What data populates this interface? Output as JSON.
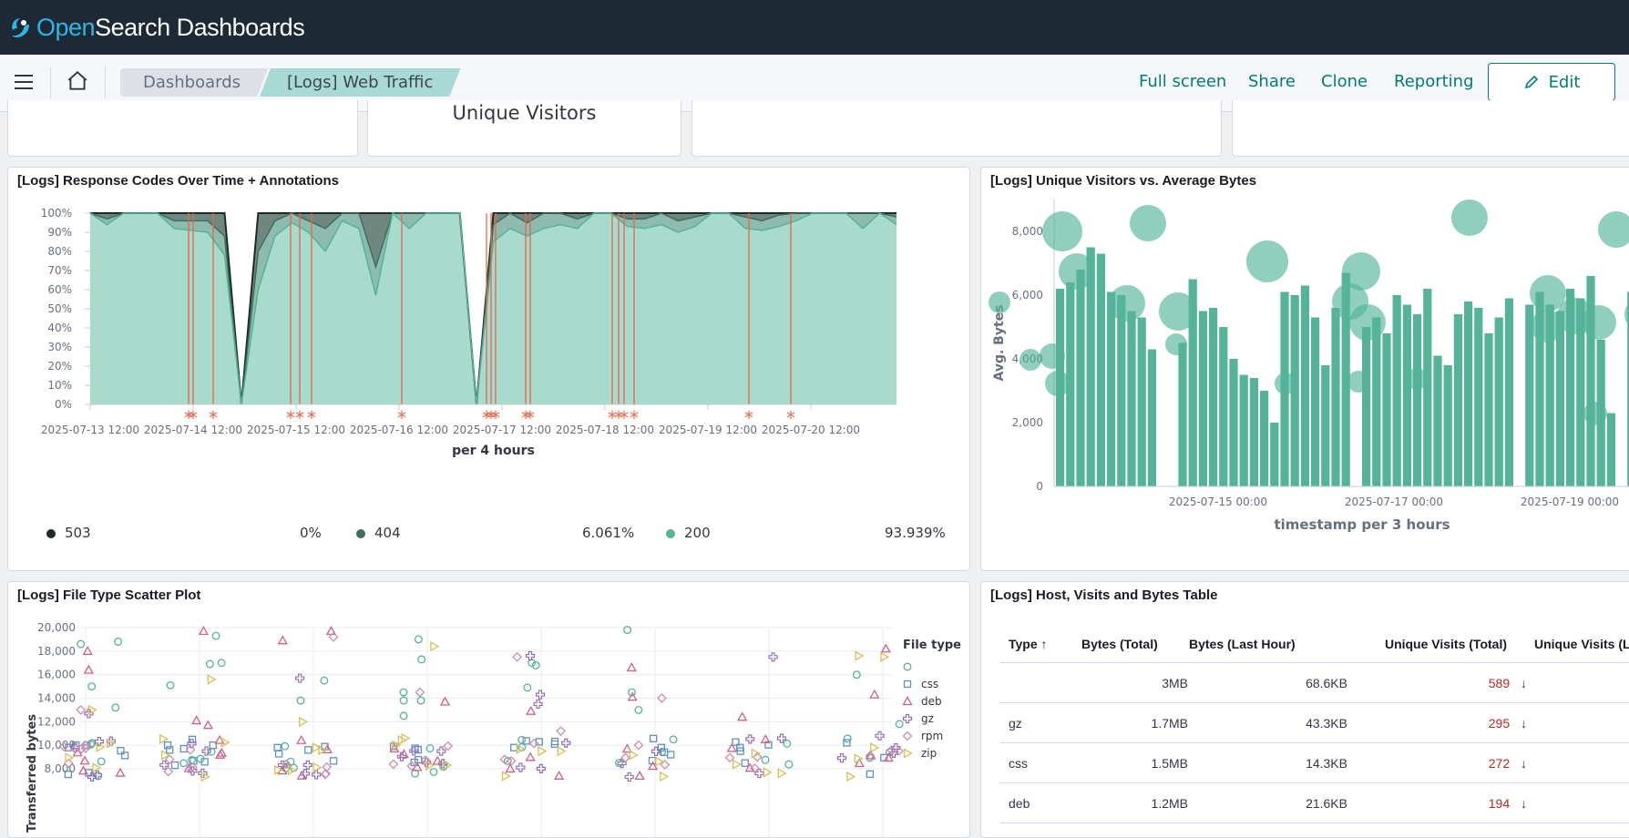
{
  "app": {
    "brand_open": "Open",
    "brand_rest": "Search Dashboards"
  },
  "nav": {
    "breadcrumbs": [
      "Dashboards",
      "[Logs] Web Traffic"
    ],
    "links": [
      "Full screen",
      "Share",
      "Clone",
      "Reporting"
    ],
    "edit_label": "Edit"
  },
  "top_panels": {
    "unique_visitors_label": "Unique Visitors"
  },
  "response_codes": {
    "title": "[Logs] Response Codes Over Time + Annotations",
    "xlabel": "per 4 hours",
    "legend": [
      {
        "name": "503",
        "value": "0%",
        "color": "#1e2b27"
      },
      {
        "name": "404",
        "value": "6.061%",
        "color": "#3f6d5f"
      },
      {
        "name": "200",
        "value": "93.939%",
        "color": "#54b399"
      }
    ]
  },
  "visitors_bytes": {
    "title": "[Logs] Unique Visitors vs. Average Bytes",
    "ylabel": "Avg. Bytes",
    "xlabel": "timestamp per 3 hours"
  },
  "scatter": {
    "title": "[Logs] File Type Scatter Plot",
    "ylabel": "Transferred bytes",
    "legend_title": "File type",
    "legend": [
      {
        "name": "",
        "shape": "circle",
        "color": "#54b399"
      },
      {
        "name": "css",
        "shape": "square",
        "color": "#6092c0"
      },
      {
        "name": "deb",
        "shape": "triangle",
        "color": "#d36086"
      },
      {
        "name": "gz",
        "shape": "cross",
        "color": "#9170b8"
      },
      {
        "name": "rpm",
        "shape": "diamond",
        "color": "#ca8eae"
      },
      {
        "name": "zip",
        "shape": "triangle-right",
        "color": "#d6bf57"
      }
    ]
  },
  "table": {
    "title": "[Logs] Host, Visits and Bytes Table",
    "headers": [
      "Type",
      "Bytes (Total)",
      "Bytes (Last Hour)",
      "Unique Visits (Total)",
      "Unique Visits (Last"
    ],
    "rows": [
      {
        "type": "",
        "bytes_total": "3MB",
        "bytes_last_hour": "68.6KB",
        "visits_total": "589"
      },
      {
        "type": "gz",
        "bytes_total": "1.7MB",
        "bytes_last_hour": "43.3KB",
        "visits_total": "295"
      },
      {
        "type": "css",
        "bytes_total": "1.5MB",
        "bytes_last_hour": "14.3KB",
        "visits_total": "272"
      },
      {
        "type": "deb",
        "bytes_total": "1.2MB",
        "bytes_last_hour": "21.6KB",
        "visits_total": "194"
      }
    ]
  },
  "chart_data": [
    {
      "type": "area",
      "title": "[Logs] Response Codes Over Time + Annotations",
      "xlabel": "per 4 hours",
      "ylabel": "",
      "x_ticks": [
        "2025-07-13 12:00",
        "2025-07-14 12:00",
        "2025-07-15 12:00",
        "2025-07-16 12:00",
        "2025-07-17 12:00",
        "2025-07-18 12:00",
        "2025-07-19 12:00",
        "2025-07-20 12:00"
      ],
      "y_ticks": [
        "0%",
        "10%",
        "20%",
        "30%",
        "40%",
        "50%",
        "60%",
        "70%",
        "80%",
        "90%",
        "100%"
      ],
      "ylim": [
        0,
        100
      ],
      "series": [
        {
          "name": "200",
          "values": [
            100,
            94,
            100,
            100,
            100,
            92,
            91,
            90,
            78,
            0,
            60,
            88,
            95,
            90,
            80,
            96,
            92,
            57,
            100,
            92,
            100,
            100,
            100,
            0,
            85,
            92,
            88,
            92,
            94,
            92,
            100,
            100,
            93,
            92,
            94,
            90,
            93,
            100,
            100,
            92,
            91,
            93,
            96,
            100,
            100,
            100,
            92,
            100,
            94
          ]
        },
        {
          "name": "404",
          "values": [
            0,
            3,
            0,
            0,
            0,
            4,
            5,
            6,
            10,
            0,
            20,
            8,
            5,
            6,
            12,
            4,
            8,
            15,
            0,
            8,
            0,
            0,
            0,
            0,
            9,
            8,
            7,
            8,
            6,
            5,
            0,
            0,
            4,
            5,
            6,
            6,
            5,
            0,
            0,
            6,
            5,
            6,
            4,
            0,
            0,
            0,
            8,
            0,
            4
          ]
        },
        {
          "name": "503",
          "values": [
            0,
            3,
            0,
            0,
            0,
            4,
            4,
            4,
            12,
            0,
            20,
            4,
            0,
            4,
            8,
            0,
            0,
            28,
            0,
            0,
            0,
            0,
            0,
            0,
            6,
            0,
            5,
            0,
            0,
            3,
            0,
            0,
            3,
            3,
            0,
            4,
            2,
            0,
            0,
            2,
            4,
            1,
            0,
            0,
            0,
            0,
            0,
            0,
            2
          ]
        }
      ],
      "annotations_count": 18
    },
    {
      "type": "bar",
      "title": "[Logs] Unique Visitors vs. Average Bytes",
      "xlabel": "timestamp per 3 hours",
      "ylabel": "Avg. Bytes",
      "ylim": [
        0,
        9000
      ],
      "y_ticks": [
        "0",
        "2,000",
        "4,000",
        "6,000",
        "8,000"
      ],
      "x_ticks": [
        "2025-07-15 00:00",
        "2025-07-17 00:00",
        "2025-07-19 00:00"
      ],
      "values": [
        6200,
        6400,
        6800,
        7500,
        7300,
        6100,
        6000,
        5500,
        5300,
        4300,
        0,
        0,
        4500,
        6500,
        5500,
        5600,
        5000,
        4000,
        3500,
        3400,
        3000,
        2000,
        6100,
        6000,
        6300,
        5300,
        3800,
        5600,
        6700,
        0,
        5000,
        5300,
        4800,
        6000,
        5700,
        5400,
        6200,
        4100,
        3800,
        5400,
        5800,
        5600,
        4800,
        5300,
        5900,
        0,
        5700,
        6100,
        5700,
        5500,
        6200,
        5900,
        6600,
        4600,
        2300,
        0,
        6100,
        4800
      ]
    },
    {
      "type": "scatter",
      "title": "[Logs] File Type Scatter Plot",
      "ylabel": "Transferred bytes",
      "ylim": [
        7000,
        20000
      ],
      "y_ticks": [
        "8,000",
        "10,000",
        "12,000",
        "14,000",
        "16,000",
        "18,000",
        "20,000"
      ],
      "series": [
        {
          "name": "",
          "y": [
            17300,
            18600,
            19000,
            13200,
            17000,
            15500,
            19800,
            12500,
            14500,
            16800,
            15100,
            11800,
            15000,
            16000,
            13800,
            13000,
            17000,
            14500,
            14900,
            16900,
            13800,
            18800,
            19300,
            13800
          ]
        },
        {
          "name": "css",
          "y": [
            10000,
            9800,
            9200,
            10000,
            9600,
            9800,
            10100,
            9500,
            9900,
            9600,
            10000,
            9700,
            9800,
            10000,
            9800
          ]
        },
        {
          "name": "deb",
          "y": [
            18200,
            18000,
            13700,
            16600,
            14100,
            12100,
            18900,
            14300,
            16400,
            19700,
            11700,
            19700,
            12900,
            12400
          ]
        },
        {
          "name": "gz",
          "y": [
            9500,
            10800,
            15700,
            14300,
            12700,
            17500,
            13500,
            17600,
            9800,
            9500
          ]
        },
        {
          "name": "rpm",
          "y": [
            19200,
            17500,
            14000,
            13000,
            10000,
            9700,
            14500,
            11200
          ]
        },
        {
          "name": "zip",
          "y": [
            17600,
            12000,
            17500,
            9300,
            18400,
            15600,
            9500,
            9800,
            13000,
            10000
          ]
        }
      ]
    }
  ]
}
